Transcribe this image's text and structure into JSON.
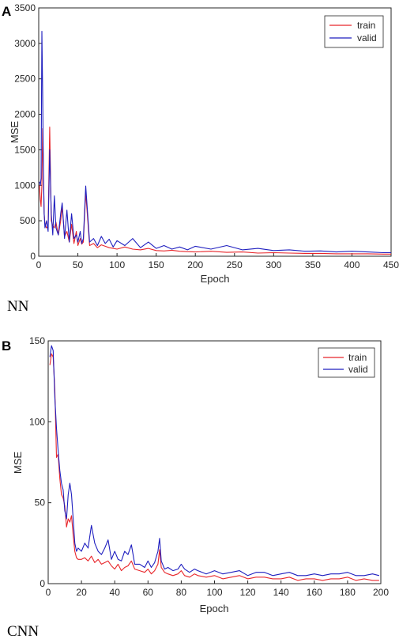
{
  "figure": {
    "panels": [
      {
        "letter": "A",
        "caption": "NN"
      },
      {
        "letter": "B",
        "caption": "CNN"
      }
    ]
  },
  "colors": {
    "train": "#e8262b",
    "valid": "#1f1fbf",
    "axis": "#262626"
  },
  "chart_data": [
    {
      "type": "line",
      "title": "",
      "xlabel": "Epoch",
      "ylabel": "MSE",
      "xlim": [
        0,
        450
      ],
      "ylim": [
        0,
        3500
      ],
      "xticks": [
        0,
        50,
        100,
        150,
        200,
        250,
        300,
        350,
        400,
        450
      ],
      "yticks": [
        0,
        500,
        1000,
        1500,
        2000,
        2500,
        3000,
        3500
      ],
      "grid": false,
      "legend": "top-right",
      "series": [
        {
          "name": "train",
          "color": "#e8262b",
          "x": [
            1,
            2,
            3,
            4,
            5,
            6,
            7,
            8,
            10,
            12,
            14,
            16,
            18,
            20,
            22,
            25,
            28,
            30,
            33,
            36,
            39,
            42,
            45,
            48,
            50,
            53,
            55,
            57,
            60,
            65,
            70,
            75,
            80,
            85,
            90,
            95,
            100,
            110,
            120,
            130,
            140,
            150,
            160,
            170,
            180,
            190,
            200,
            220,
            240,
            260,
            280,
            300,
            320,
            340,
            360,
            380,
            400,
            420,
            440,
            450
          ],
          "y": [
            1000,
            800,
            700,
            1000,
            1800,
            1300,
            600,
            450,
            400,
            420,
            1820,
            500,
            430,
            400,
            480,
            300,
            500,
            700,
            280,
            350,
            200,
            450,
            180,
            350,
            150,
            250,
            170,
            200,
            900,
            150,
            180,
            120,
            160,
            140,
            120,
            110,
            100,
            130,
            100,
            90,
            110,
            80,
            75,
            85,
            70,
            65,
            60,
            70,
            55,
            60,
            45,
            50,
            45,
            40,
            40,
            35,
            35,
            35,
            30,
            30
          ]
        },
        {
          "name": "valid",
          "color": "#1f1fbf",
          "x": [
            1,
            2,
            3,
            4,
            5,
            6,
            7,
            8,
            10,
            12,
            14,
            16,
            18,
            20,
            22,
            25,
            28,
            30,
            33,
            36,
            39,
            42,
            45,
            48,
            50,
            53,
            55,
            57,
            60,
            65,
            70,
            75,
            80,
            85,
            90,
            95,
            100,
            110,
            120,
            130,
            140,
            150,
            160,
            170,
            180,
            190,
            200,
            220,
            240,
            260,
            280,
            300,
            320,
            340,
            360,
            380,
            400,
            420,
            440,
            450
          ],
          "y": [
            1050,
            1000,
            1100,
            3170,
            2300,
            1200,
            600,
            400,
            500,
            350,
            1500,
            600,
            300,
            850,
            400,
            300,
            600,
            750,
            250,
            650,
            200,
            600,
            250,
            300,
            200,
            350,
            180,
            250,
            990,
            200,
            250,
            150,
            280,
            180,
            240,
            130,
            220,
            150,
            250,
            120,
            200,
            110,
            150,
            100,
            130,
            90,
            140,
            100,
            150,
            90,
            110,
            80,
            90,
            70,
            75,
            60,
            70,
            60,
            50,
            50
          ]
        }
      ]
    },
    {
      "type": "line",
      "title": "",
      "xlabel": "Epoch",
      "ylabel": "MSE",
      "xlim": [
        0,
        200
      ],
      "ylim": [
        0,
        150
      ],
      "xticks": [
        0,
        20,
        40,
        60,
        80,
        100,
        120,
        140,
        160,
        180,
        200
      ],
      "yticks": [
        0,
        50,
        100,
        150
      ],
      "grid": false,
      "legend": "top-right",
      "series": [
        {
          "name": "train",
          "color": "#e8262b",
          "x": [
            1,
            2,
            3,
            4,
            5,
            6,
            7,
            8,
            9,
            10,
            11,
            12,
            13,
            14,
            15,
            16,
            17,
            18,
            20,
            22,
            24,
            26,
            28,
            30,
            32,
            34,
            36,
            38,
            40,
            42,
            44,
            46,
            48,
            50,
            52,
            55,
            58,
            60,
            62,
            64,
            66,
            67,
            68,
            70,
            72,
            75,
            78,
            80,
            82,
            85,
            88,
            90,
            95,
            100,
            105,
            110,
            115,
            120,
            125,
            130,
            135,
            140,
            145,
            150,
            155,
            160,
            165,
            170,
            175,
            180,
            185,
            190,
            195,
            199
          ],
          "y": [
            135,
            142,
            140,
            120,
            78,
            80,
            65,
            55,
            53,
            48,
            35,
            40,
            38,
            42,
            30,
            20,
            16,
            15,
            15,
            16,
            14,
            17,
            13,
            15,
            12,
            13,
            14,
            11,
            9,
            12,
            8,
            10,
            11,
            14,
            9,
            8,
            7,
            9,
            6,
            8,
            12,
            21,
            10,
            7,
            6,
            5,
            6,
            8,
            5,
            4,
            6,
            5,
            4,
            5,
            3,
            4,
            5,
            3,
            4,
            4,
            3,
            3,
            4,
            2,
            3,
            3,
            2,
            3,
            3,
            4,
            2,
            3,
            2,
            2
          ]
        },
        {
          "name": "valid",
          "color": "#1f1fbf",
          "x": [
            1,
            2,
            3,
            4,
            5,
            6,
            7,
            8,
            9,
            10,
            11,
            12,
            13,
            14,
            15,
            16,
            17,
            18,
            20,
            22,
            24,
            26,
            28,
            30,
            32,
            34,
            36,
            38,
            40,
            42,
            44,
            46,
            48,
            50,
            52,
            55,
            58,
            60,
            62,
            64,
            66,
            67,
            68,
            70,
            72,
            75,
            78,
            80,
            82,
            85,
            88,
            90,
            95,
            100,
            105,
            110,
            115,
            120,
            125,
            130,
            135,
            140,
            145,
            150,
            155,
            160,
            165,
            170,
            175,
            180,
            185,
            190,
            195,
            199
          ],
          "y": [
            140,
            147,
            144,
            115,
            96,
            82,
            70,
            62,
            58,
            45,
            40,
            55,
            62,
            55,
            40,
            25,
            20,
            22,
            20,
            25,
            22,
            36,
            25,
            20,
            18,
            22,
            27,
            15,
            20,
            15,
            14,
            20,
            18,
            24,
            12,
            12,
            10,
            14,
            10,
            13,
            20,
            28,
            14,
            9,
            10,
            8,
            9,
            12,
            9,
            7,
            9,
            8,
            6,
            8,
            6,
            7,
            8,
            5,
            7,
            7,
            5,
            6,
            7,
            5,
            5,
            6,
            5,
            6,
            6,
            7,
            5,
            5,
            6,
            5
          ]
        }
      ]
    }
  ]
}
